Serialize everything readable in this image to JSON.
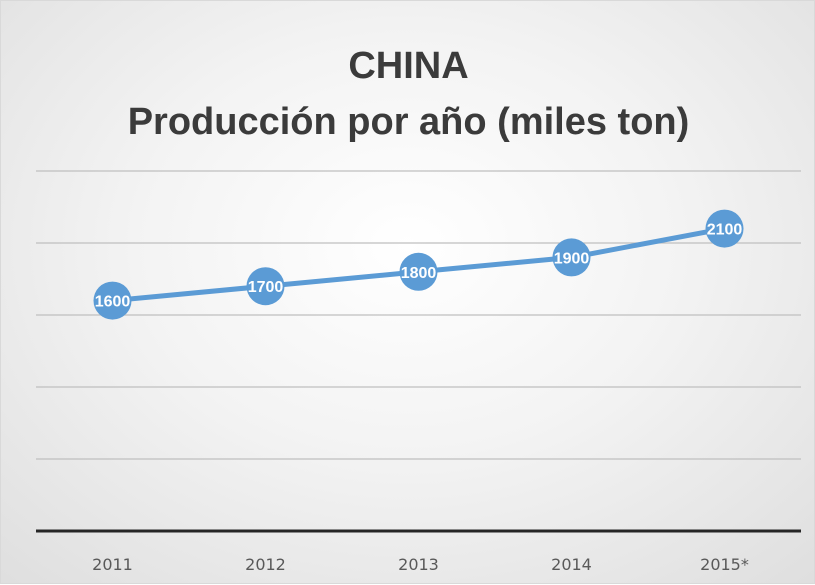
{
  "chart_data": {
    "type": "line",
    "title": "CHINA",
    "subtitle": "Producción por año (miles ton)",
    "categories": [
      "2011",
      "2012",
      "2013",
      "2014",
      "2015*"
    ],
    "series": [
      {
        "values": [
          1600,
          1700,
          1800,
          1900,
          2100
        ]
      }
    ],
    "data_label_text": [
      "1600",
      "1700",
      "1800",
      "1900",
      "2100"
    ],
    "ylim": [
      0,
      2500
    ],
    "grid": true,
    "legend": "none",
    "colors": {
      "line": "#5b9bd5",
      "marker": "#5b9bd5",
      "grid": "#bfbfbf",
      "axis": "#262626"
    }
  }
}
